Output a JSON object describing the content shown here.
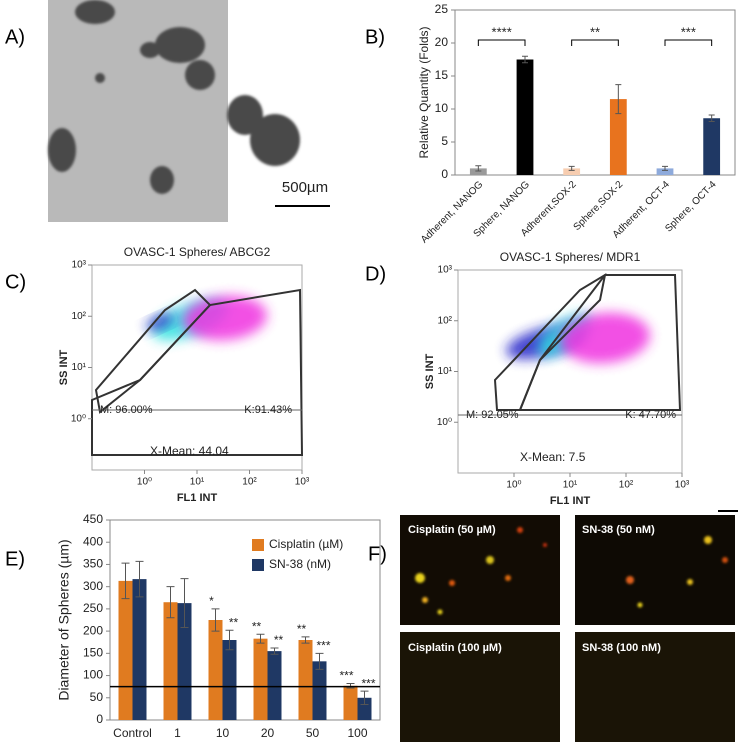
{
  "panel_labels": [
    "A)",
    "B)",
    "C)",
    "D)",
    "E)",
    "F)"
  ],
  "panel_a": {
    "scale_bar": "500µm"
  },
  "chart_data": [
    {
      "type": "bar",
      "ylabel": "Relative Quantity (Folds)",
      "categories": [
        "Adherent, NANOG",
        "Sphere, NANOG",
        "Adherent,SOX-2",
        "Sphere,SOX-2",
        "Adherent, OCT-4",
        "Sphere, OCT-4"
      ],
      "values": [
        1,
        17.5,
        1,
        11.5,
        1,
        8.6
      ],
      "errors": [
        0.4,
        0.5,
        0.3,
        2.2,
        0.3,
        0.5
      ],
      "colors": [
        "#9a9a9a",
        "#000000",
        "#f7cdb0",
        "#e8731e",
        "#8eaadb",
        "#1f3864"
      ],
      "significance": [
        "****",
        "**",
        "***"
      ],
      "ylim": [
        0,
        25
      ],
      "yticks": [
        0,
        5,
        10,
        15,
        20,
        25
      ]
    },
    {
      "type": "scatter",
      "title": "OVASC-1 Spheres/ ABCG2",
      "xlabel": "FL1 INT",
      "ylabel": "SS INT",
      "log_scale": true,
      "xlim": [
        0.1,
        1000
      ],
      "ylim": [
        0.1,
        1000
      ],
      "xticks": [
        {
          "value": 1,
          "label": "10⁰"
        },
        {
          "value": 10,
          "label": "10¹"
        },
        {
          "value": 100,
          "label": "10²"
        },
        {
          "value": 1000,
          "label": "10³"
        }
      ],
      "yticks": [
        {
          "value": 1,
          "label": "10⁰"
        },
        {
          "value": 10,
          "label": "10¹"
        },
        {
          "value": 100,
          "label": "10²"
        },
        {
          "value": 1000,
          "label": "10³"
        }
      ],
      "annotations": [
        "M: 96.00%",
        "K:91.43%",
        "X-Mean: 44.04"
      ]
    },
    {
      "type": "scatter",
      "title": "OVASC-1 Spheres/ MDR1",
      "xlabel": "FL1 INT",
      "ylabel": "SS INT",
      "log_scale": true,
      "xlim": [
        0.1,
        1000
      ],
      "ylim": [
        0.1,
        1000
      ],
      "xticks": [
        {
          "value": 1,
          "label": "10⁰"
        },
        {
          "value": 10,
          "label": "10¹"
        },
        {
          "value": 100,
          "label": "10²"
        },
        {
          "value": 1000,
          "label": "10³"
        }
      ],
      "yticks": [
        {
          "value": 1,
          "label": "10⁰"
        },
        {
          "value": 10,
          "label": "10¹"
        },
        {
          "value": 100,
          "label": "10²"
        },
        {
          "value": 1000,
          "label": "10³"
        }
      ],
      "annotations": [
        "M: 92.05%",
        "K: 47.70%",
        "X-Mean: 7.5"
      ]
    },
    {
      "type": "grouped-bar",
      "ylabel": "Diameter of Spheres (µm)",
      "categories": [
        "Control",
        "1",
        "10",
        "20",
        "50",
        "100"
      ],
      "series": [
        {
          "name": "Cisplatin (µM)",
          "color": "#e07b20",
          "values": [
            313,
            265,
            225,
            183,
            180,
            77
          ],
          "errors": [
            40,
            35,
            25,
            10,
            7,
            5
          ],
          "significance": [
            null,
            null,
            "*",
            "**",
            "**",
            "***"
          ]
        },
        {
          "name": "SN-38 (nM)",
          "color": "#1f3864",
          "values": [
            317,
            263,
            180,
            155,
            132,
            50
          ],
          "errors": [
            40,
            55,
            22,
            7,
            18,
            15
          ],
          "significance": [
            null,
            null,
            "**",
            "**",
            "***",
            "***"
          ]
        }
      ],
      "reference_line": 75,
      "ylim": [
        0,
        450
      ],
      "yticks": [
        0,
        50,
        100,
        150,
        200,
        250,
        300,
        350,
        400,
        450
      ]
    }
  ],
  "panel_f": {
    "images": [
      "Cisplatin (50 µM)",
      "SN-38 (50 nM)",
      "Cisplatin (100 µM)",
      "SN-38 (100 nM)"
    ]
  }
}
